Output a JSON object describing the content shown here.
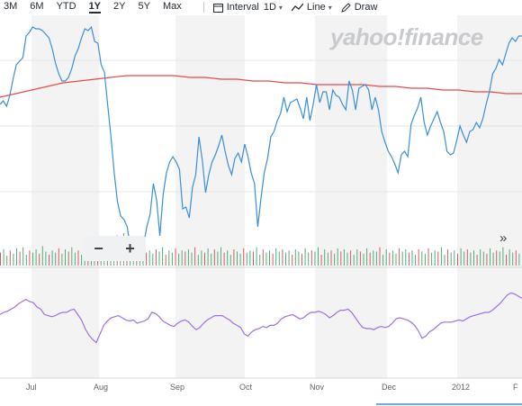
{
  "toolbar": {
    "ranges": [
      "3M",
      "6M",
      "YTD",
      "1Y",
      "2Y",
      "5Y",
      "Max"
    ],
    "active_range": "1Y",
    "interval_label": "Interval",
    "interval_value": "1D",
    "chart_type_label": "Line",
    "draw_label": "Draw"
  },
  "watermark": "yahoo!finance",
  "zoom": {
    "minus": "−",
    "plus": "+"
  },
  "more_glyph": "»",
  "colors": {
    "price": "#3a8fd9",
    "moving_average": "#e8494b",
    "indicator": "#9f6fe6",
    "volume_up": "#4caf78",
    "volume_down": "#e0575b",
    "band": "#f3f3f3"
  },
  "chart_data": {
    "type": "line",
    "x_ticks": [
      "Jul",
      "Aug",
      "Sep",
      "Oct",
      "Nov",
      "Dec",
      "2012",
      "F"
    ],
    "series": [
      {
        "values": [
          58,
          60,
          57,
          63,
          72,
          80,
          82,
          84,
          96,
          98,
          101,
          100,
          100,
          99,
          97,
          95,
          89,
          81,
          75,
          71,
          71,
          73,
          78,
          85,
          89,
          95,
          100,
          99,
          101,
          93,
          92,
          80,
          76,
          58,
          40,
          20,
          4,
          -4,
          -6,
          -10,
          -22,
          -23,
          -18,
          -25,
          -20,
          -10,
          -3,
          14,
          5,
          -15,
          8,
          20,
          26,
          29,
          26,
          22,
          0,
          1,
          -5,
          12,
          19,
          40,
          27,
          9,
          19,
          26,
          30,
          35,
          41,
          32,
          24,
          19,
          28,
          31,
          26,
          36,
          29,
          20,
          14,
          -10,
          6,
          20,
          28,
          40,
          43,
          49,
          53,
          62,
          54,
          59,
          60,
          61,
          56,
          50,
          62,
          49,
          58,
          69,
          59,
          65,
          65,
          55,
          66,
          63,
          62,
          58,
          55,
          71,
          66,
          55,
          67,
          68,
          69,
          66,
          55,
          62,
          55,
          43,
          37,
          32,
          29,
          25,
          20,
          30,
          32,
          29,
          47,
          52,
          56,
          62,
          48,
          41,
          46,
          50,
          54,
          48,
          43,
          32,
          30,
          31,
          38,
          46,
          41,
          37,
          43,
          44,
          48,
          45,
          50,
          58,
          65,
          75,
          78,
          83,
          80,
          86,
          92,
          95,
          93,
          96,
          96
        ]
      },
      {
        "values": [
          62,
          64,
          66,
          68,
          70,
          71,
          72,
          73,
          74,
          74,
          74,
          74,
          73,
          73,
          72,
          72,
          71,
          71,
          70,
          70,
          69,
          69,
          69,
          69,
          68,
          68,
          67,
          67,
          66,
          66,
          65,
          65,
          64,
          64
        ]
      },
      {
        "values": [
          38,
          40,
          41,
          43,
          45,
          48,
          50,
          52,
          50,
          49,
          45,
          43,
          38,
          37,
          36,
          37,
          39,
          40,
          40,
          42,
          43,
          38,
          33,
          25,
          19,
          15,
          12,
          20,
          28,
          32,
          35,
          36,
          37,
          35,
          33,
          32,
          33,
          30,
          31,
          32,
          34,
          40,
          39,
          36,
          32,
          30,
          28,
          27,
          30,
          32,
          33,
          31,
          27,
          24,
          26,
          30,
          33,
          35,
          37,
          37,
          37,
          35,
          33,
          30,
          28,
          26,
          20,
          18,
          22,
          24,
          25,
          27,
          26,
          28,
          28,
          30,
          34,
          36,
          37,
          38,
          36,
          34,
          35,
          38,
          40,
          40,
          41,
          40,
          38,
          35,
          37,
          40,
          42,
          42,
          43,
          40,
          35,
          30,
          26,
          25,
          25,
          24,
          26,
          27,
          26,
          27,
          30,
          34,
          35,
          34,
          33,
          31,
          28,
          23,
          16,
          18,
          22,
          24,
          27,
          30,
          31,
          31,
          31,
          32,
          33,
          32,
          34,
          36,
          37,
          38,
          39,
          40,
          40,
          42,
          45,
          48,
          52,
          56,
          58,
          57,
          55,
          53
        ]
      }
    ],
    "volume": [
      12,
      15,
      9,
      14,
      11,
      16,
      13,
      17,
      10,
      14,
      12,
      15,
      11,
      18,
      13,
      10,
      14,
      12,
      16,
      11,
      15,
      13,
      17,
      12,
      14,
      10,
      15,
      13,
      11,
      16,
      12,
      14,
      13,
      17,
      10,
      15,
      28,
      22,
      30,
      26,
      18,
      20,
      14,
      16,
      22,
      12,
      14,
      11,
      15,
      13,
      17,
      10,
      14,
      12,
      16,
      11,
      14,
      13,
      15,
      12,
      17,
      10,
      14,
      12,
      16,
      11,
      15,
      13,
      17,
      12,
      14,
      10,
      15,
      13,
      11,
      16,
      12,
      14,
      13,
      17,
      10,
      15,
      12,
      14,
      11,
      16,
      13,
      15,
      12,
      14,
      10,
      15,
      13,
      11,
      16,
      12,
      14,
      13,
      17,
      10,
      15,
      12,
      14,
      11,
      16,
      13,
      15,
      12,
      14,
      10,
      15,
      13,
      11,
      16,
      12,
      14,
      13,
      17,
      10,
      15,
      12,
      14,
      11,
      16,
      13,
      15,
      12,
      14,
      10,
      15,
      13,
      11,
      16,
      12,
      14,
      13,
      17,
      10,
      15,
      12,
      14,
      11,
      16,
      13,
      15,
      12,
      14,
      10,
      15,
      13,
      11,
      16,
      12,
      14,
      13,
      17,
      10,
      15,
      12,
      14,
      11
    ],
    "grid": true
  }
}
